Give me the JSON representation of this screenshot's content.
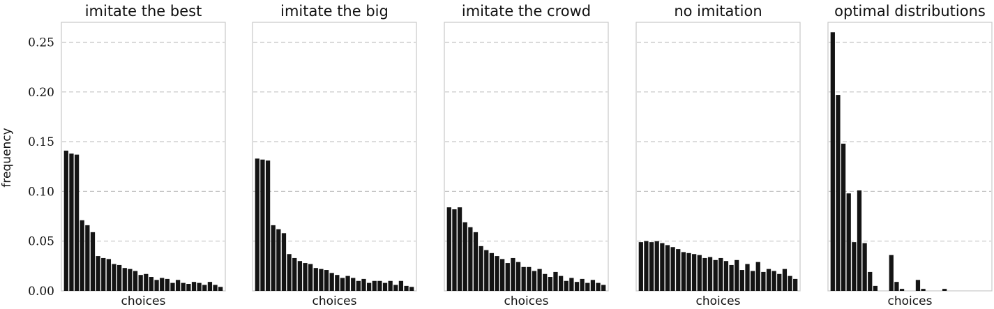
{
  "figure": {
    "ylabel": "frequency"
  },
  "chart_data": [
    {
      "type": "bar",
      "title": "imitate the best",
      "xlabel": "choices",
      "ylim": [
        0,
        0.27
      ],
      "yticks": [
        "0.00",
        "0.05",
        "0.10",
        "0.15",
        "0.20",
        "0.25"
      ],
      "grid": "horizontal dashed",
      "values": [
        0.141,
        0.138,
        0.137,
        0.071,
        0.066,
        0.059,
        0.035,
        0.033,
        0.032,
        0.027,
        0.026,
        0.023,
        0.022,
        0.02,
        0.016,
        0.017,
        0.014,
        0.011,
        0.013,
        0.012,
        0.008,
        0.011,
        0.008,
        0.007,
        0.009,
        0.008,
        0.006,
        0.009,
        0.006,
        0.004
      ]
    },
    {
      "type": "bar",
      "title": "imitate the big",
      "xlabel": "choices",
      "ylim": [
        0,
        0.27
      ],
      "yticks": [
        "0.00",
        "0.05",
        "0.10",
        "0.15",
        "0.20",
        "0.25"
      ],
      "grid": "horizontal dashed",
      "values": [
        0.133,
        0.132,
        0.131,
        0.066,
        0.062,
        0.058,
        0.037,
        0.033,
        0.03,
        0.028,
        0.027,
        0.023,
        0.022,
        0.021,
        0.018,
        0.016,
        0.013,
        0.015,
        0.013,
        0.01,
        0.012,
        0.008,
        0.01,
        0.01,
        0.008,
        0.01,
        0.006,
        0.01,
        0.005,
        0.004
      ]
    },
    {
      "type": "bar",
      "title": "imitate the crowd",
      "xlabel": "choices",
      "ylim": [
        0,
        0.27
      ],
      "yticks": [
        "0.00",
        "0.05",
        "0.10",
        "0.15",
        "0.20",
        "0.25"
      ],
      "grid": "horizontal dashed",
      "values": [
        0.084,
        0.082,
        0.084,
        0.069,
        0.064,
        0.059,
        0.045,
        0.041,
        0.038,
        0.035,
        0.032,
        0.028,
        0.033,
        0.029,
        0.024,
        0.024,
        0.02,
        0.022,
        0.017,
        0.014,
        0.019,
        0.015,
        0.01,
        0.013,
        0.009,
        0.012,
        0.008,
        0.011,
        0.008,
        0.006
      ]
    },
    {
      "type": "bar",
      "title": "no imitation",
      "xlabel": "choices",
      "ylim": [
        0,
        0.27
      ],
      "yticks": [
        "0.00",
        "0.05",
        "0.10",
        "0.15",
        "0.20",
        "0.25"
      ],
      "grid": "horizontal dashed",
      "values": [
        0.049,
        0.05,
        0.049,
        0.05,
        0.048,
        0.046,
        0.044,
        0.042,
        0.039,
        0.038,
        0.037,
        0.036,
        0.033,
        0.034,
        0.031,
        0.033,
        0.03,
        0.026,
        0.031,
        0.021,
        0.027,
        0.02,
        0.029,
        0.019,
        0.022,
        0.02,
        0.017,
        0.022,
        0.015,
        0.012
      ]
    },
    {
      "type": "bar",
      "title": "optimal distributions",
      "xlabel": "choices",
      "ylim": [
        0,
        0.27
      ],
      "yticks": [
        "0.00",
        "0.05",
        "0.10",
        "0.15",
        "0.20",
        "0.25"
      ],
      "grid": "horizontal dashed",
      "values": [
        0.26,
        0.197,
        0.148,
        0.098,
        0.049,
        0.101,
        0.048,
        0.019,
        0.005,
        0,
        0,
        0.036,
        0.009,
        0.002,
        0,
        0,
        0.011,
        0.002,
        0,
        0,
        0,
        0.002,
        0,
        0,
        0,
        0,
        0,
        0,
        0,
        0
      ]
    }
  ]
}
